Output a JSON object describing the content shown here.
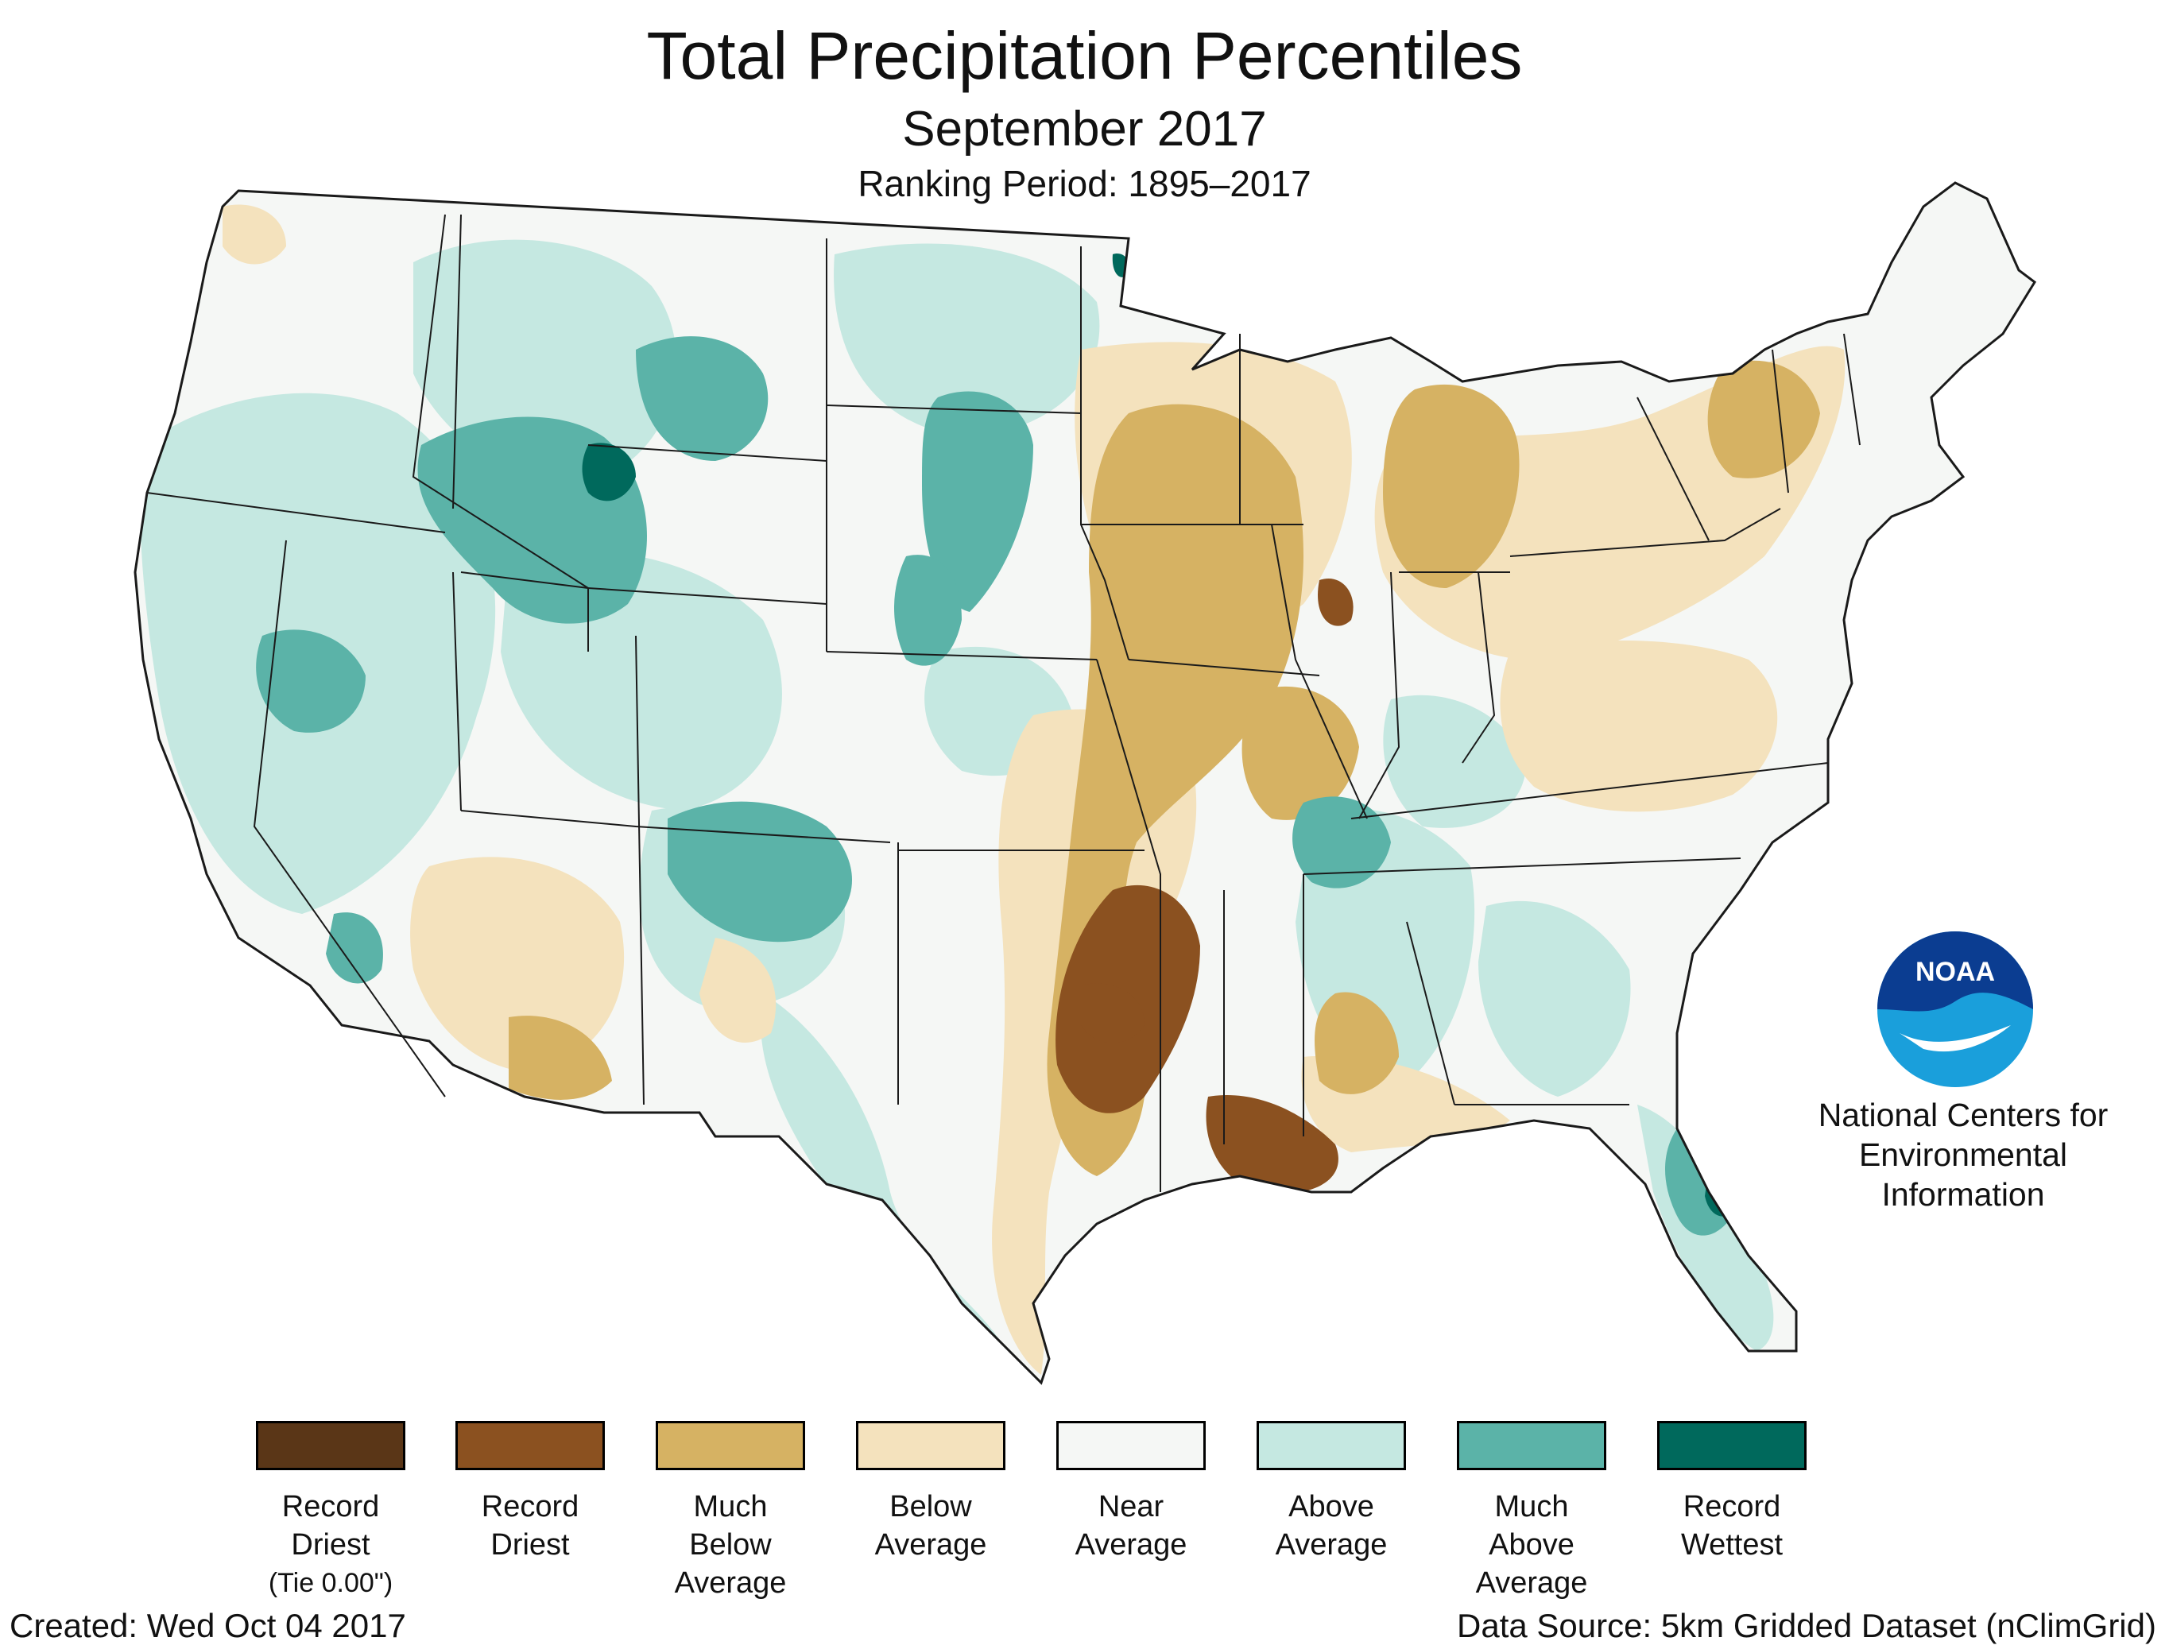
{
  "title": "Total Precipitation Percentiles",
  "subtitle": "September 2017",
  "ranking_period": "Ranking Period: 1895–2017",
  "map": {
    "region": "Contiguous United States",
    "regional_patterns": [
      {
        "area": "Lower Mississippi Valley / Louisiana / eastern Texas",
        "category": "record-driest"
      },
      {
        "area": "Missouri / Illinois / Arkansas",
        "category": "much-below-average"
      },
      {
        "area": "Michigan / Wisconsin",
        "category": "much-below-average"
      },
      {
        "area": "Northeast / Mid-Atlantic",
        "category": "below-average"
      },
      {
        "area": "Colorado / New Mexico",
        "category": "much-above-average"
      },
      {
        "area": "Wyoming / Montana / Idaho",
        "category": "much-above-average"
      },
      {
        "area": "Yellowstone region",
        "category": "record-wettest"
      },
      {
        "area": "Central Florida",
        "category": "record-wettest"
      },
      {
        "area": "Nevada / California / Oregon",
        "category": "above-average"
      }
    ],
    "colors": {
      "background": "#f5f7f5",
      "state_border": "#1a1a1a"
    }
  },
  "logo": {
    "text": "NOAA",
    "icon": "noaa-logo-icon"
  },
  "organization": {
    "line1": "National Centers for",
    "line2": "Environmental",
    "line3": "Information"
  },
  "legend": [
    {
      "id": "record-driest-tie",
      "color": "#5a3617",
      "lines": [
        "Record",
        "Driest",
        "(Tie 0.00\")"
      ]
    },
    {
      "id": "record-driest",
      "color": "#8b5120",
      "lines": [
        "Record",
        "Driest"
      ]
    },
    {
      "id": "much-below-average",
      "color": "#d6b263",
      "lines": [
        "Much",
        "Below",
        "Average"
      ]
    },
    {
      "id": "below-average",
      "color": "#f4e2bd",
      "lines": [
        "Below",
        "Average"
      ]
    },
    {
      "id": "near-average",
      "color": "#f5f7f5",
      "lines": [
        "Near",
        "Average"
      ]
    },
    {
      "id": "above-average",
      "color": "#c5e8e1",
      "lines": [
        "Above",
        "Average"
      ]
    },
    {
      "id": "much-above-average",
      "color": "#5bb3a8",
      "lines": [
        "Much",
        "Above",
        "Average"
      ]
    },
    {
      "id": "record-wettest",
      "color": "#00695c",
      "lines": [
        "Record",
        "Wettest"
      ]
    }
  ],
  "footer": {
    "created": "Created: Wed Oct 04 2017",
    "source": "Data Source: 5km Gridded Dataset (nClimGrid)"
  }
}
